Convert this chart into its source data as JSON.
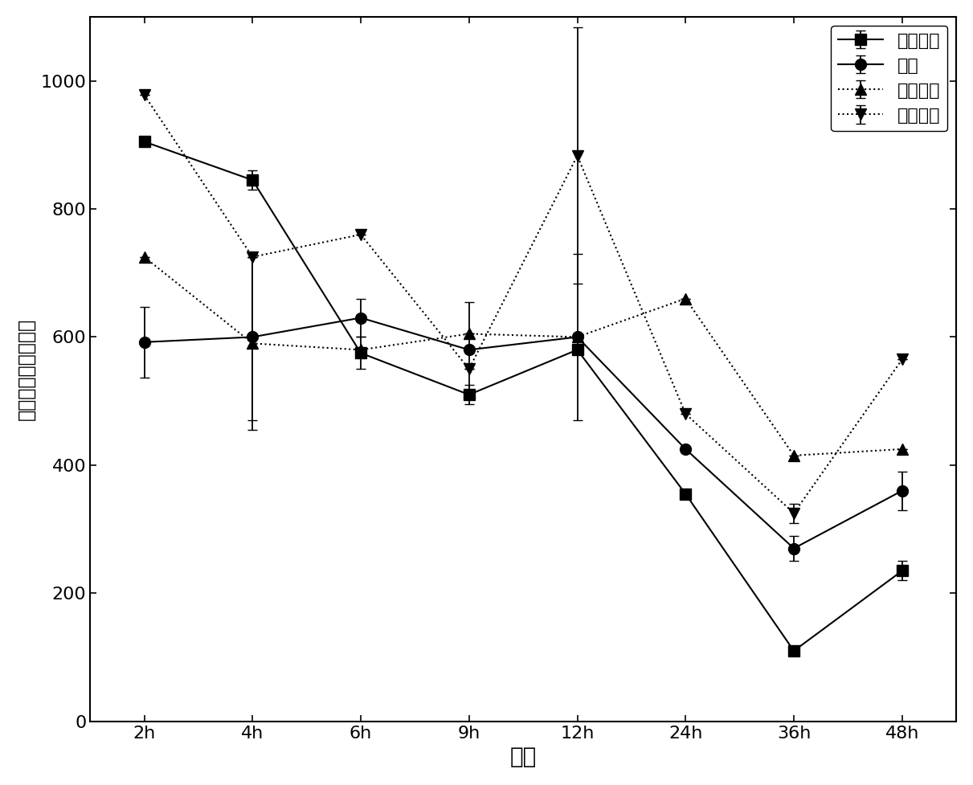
{
  "x_labels": [
    "2h",
    "4h",
    "6h",
    "9h",
    "12h",
    "24h",
    "36h",
    "48h"
  ],
  "x_positions": [
    0,
    1,
    2,
    3,
    4,
    5,
    6,
    7
  ],
  "series": [
    {
      "label": "浓缩菌液",
      "marker": "s",
      "linestyle": "-",
      "color": "#000000",
      "y": [
        905,
        845,
        575,
        510,
        580,
        355,
        110,
        235
      ],
      "yerr_lo": [
        0,
        15,
        25,
        15,
        0,
        0,
        0,
        15
      ],
      "yerr_hi": [
        0,
        15,
        25,
        15,
        0,
        0,
        0,
        15
      ]
    },
    {
      "label": "原液",
      "marker": "o",
      "linestyle": "-",
      "color": "#000000",
      "y": [
        592,
        600,
        630,
        580,
        600,
        425,
        270,
        360
      ],
      "yerr_lo": [
        55,
        130,
        30,
        75,
        130,
        0,
        20,
        30
      ],
      "yerr_hi": [
        55,
        130,
        30,
        75,
        130,
        0,
        20,
        30
      ]
    },
    {
      "label": "稀释菌液",
      "marker": "^",
      "linestyle": ":",
      "color": "#000000",
      "y": [
        725,
        590,
        580,
        605,
        600,
        660,
        415,
        425
      ],
      "yerr_lo": [
        0,
        135,
        0,
        0,
        0,
        0,
        0,
        0
      ],
      "yerr_hi": [
        0,
        135,
        0,
        0,
        0,
        0,
        0,
        0
      ]
    },
    {
      "label": "空白对照",
      "marker": "v",
      "linestyle": ":",
      "color": "#000000",
      "y": [
        978,
        725,
        760,
        550,
        883,
        480,
        325,
        565
      ],
      "yerr_lo": [
        0,
        0,
        0,
        0,
        200,
        0,
        15,
        0
      ],
      "yerr_hi": [
        0,
        0,
        0,
        0,
        200,
        0,
        15,
        0
      ]
    }
  ],
  "xlabel": "时间",
  "ylabel": "臭气浓度（无量纲）",
  "ylim": [
    0,
    1100
  ],
  "yticks": [
    0,
    200,
    400,
    600,
    800,
    1000
  ],
  "xlim": [
    -0.5,
    7.5
  ],
  "legend_loc": "upper right",
  "figure_bgcolor": "#ffffff",
  "axes_bgcolor": "#ffffff",
  "linewidth": 1.5,
  "markersize": 10,
  "capsize": 4,
  "xlabel_fontsize": 20,
  "ylabel_fontsize": 17,
  "tick_fontsize": 16,
  "legend_fontsize": 16
}
